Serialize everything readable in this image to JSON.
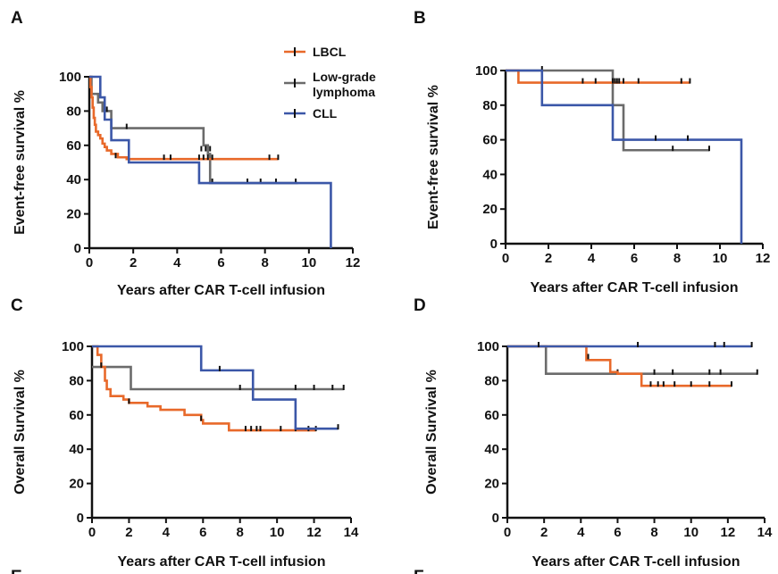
{
  "colors": {
    "LBCL": "#e8692a",
    "Low-grade lymphoma": "#6b6b6b",
    "CLL": "#3b57a8"
  },
  "legend": {
    "items": [
      {
        "name": "LBCL",
        "lines": [
          "LBCL"
        ]
      },
      {
        "name": "Low-grade lymphoma",
        "lines": [
          "Low-grade",
          "lymphoma"
        ]
      },
      {
        "name": "CLL",
        "lines": [
          "CLL"
        ]
      }
    ]
  },
  "footer_labels": [
    "E",
    "F"
  ],
  "chart_data": [
    {
      "panel": "A",
      "type": "line",
      "title": "",
      "xlabel": "Years after CAR T-cell infusion",
      "ylabel": "Event-free survival %",
      "xlim": [
        0,
        12
      ],
      "ylim": [
        0,
        100
      ],
      "xticks": [
        "0",
        "2",
        "4",
        "6",
        "8",
        "10",
        "12"
      ],
      "yticks": [
        "0",
        "20",
        "40",
        "60",
        "80",
        "100"
      ],
      "series": [
        {
          "name": "LBCL",
          "steps": [
            [
              0,
              100
            ],
            [
              0.05,
              94
            ],
            [
              0.1,
              88
            ],
            [
              0.15,
              82
            ],
            [
              0.2,
              76
            ],
            [
              0.25,
              72
            ],
            [
              0.3,
              68
            ],
            [
              0.4,
              66
            ],
            [
              0.5,
              64
            ],
            [
              0.6,
              61
            ],
            [
              0.7,
              59
            ],
            [
              0.8,
              57
            ],
            [
              1.0,
              55
            ],
            [
              1.3,
              53
            ],
            [
              1.7,
              52
            ],
            [
              8.6,
              52
            ]
          ],
          "censored": [
            [
              1.2,
              53
            ],
            [
              3.4,
              52
            ],
            [
              3.7,
              52
            ],
            [
              5.0,
              52
            ],
            [
              5.2,
              52
            ],
            [
              5.4,
              52
            ],
            [
              5.6,
              52
            ],
            [
              8.2,
              52
            ],
            [
              8.6,
              52
            ]
          ]
        },
        {
          "name": "Low-grade lymphoma",
          "steps": [
            [
              0,
              100
            ],
            [
              0.1,
              90
            ],
            [
              0.4,
              85
            ],
            [
              0.6,
              80
            ],
            [
              1.0,
              70
            ],
            [
              5.0,
              70
            ],
            [
              5.2,
              60
            ],
            [
              5.4,
              55
            ],
            [
              5.5,
              38
            ],
            [
              9.5,
              38
            ]
          ],
          "censored": [
            [
              0.8,
              80
            ],
            [
              1.7,
              70
            ],
            [
              5.1,
              57
            ],
            [
              5.3,
              57
            ],
            [
              5.5,
              57
            ],
            [
              5.6,
              38
            ],
            [
              7.2,
              38
            ],
            [
              7.8,
              38
            ],
            [
              8.5,
              38
            ],
            [
              9.4,
              38
            ]
          ]
        },
        {
          "name": "CLL",
          "steps": [
            [
              0,
              100
            ],
            [
              0.5,
              88
            ],
            [
              0.7,
              75
            ],
            [
              1.0,
              63
            ],
            [
              1.7,
              63
            ],
            [
              1.8,
              50
            ],
            [
              5.0,
              50
            ],
            [
              5.0,
              38
            ],
            [
              11.0,
              38
            ],
            [
              11.0,
              0
            ]
          ],
          "censored": []
        }
      ]
    },
    {
      "panel": "B",
      "type": "line",
      "title": "",
      "xlabel": "Years after CAR T-cell infusion",
      "ylabel": "Event-free survival %",
      "xlim": [
        0,
        12
      ],
      "ylim": [
        0,
        100
      ],
      "xticks": [
        "0",
        "2",
        "4",
        "6",
        "8",
        "10",
        "12"
      ],
      "yticks": [
        "0",
        "20",
        "40",
        "60",
        "80",
        "100"
      ],
      "series": [
        {
          "name": "LBCL",
          "steps": [
            [
              0,
              100
            ],
            [
              0.6,
              93
            ],
            [
              8.6,
              93
            ]
          ],
          "censored": [
            [
              3.6,
              93
            ],
            [
              4.2,
              93
            ],
            [
              5.0,
              93
            ],
            [
              5.1,
              93
            ],
            [
              5.2,
              93
            ],
            [
              5.3,
              93
            ],
            [
              5.5,
              93
            ],
            [
              6.2,
              93
            ],
            [
              8.2,
              93
            ],
            [
              8.6,
              93
            ]
          ]
        },
        {
          "name": "Low-grade lymphoma",
          "steps": [
            [
              0,
              100
            ],
            [
              5.0,
              100
            ],
            [
              5.0,
              80
            ],
            [
              5.5,
              80
            ],
            [
              5.5,
              54
            ],
            [
              9.5,
              54
            ]
          ],
          "censored": [
            [
              1.7,
              100
            ],
            [
              7.8,
              54
            ],
            [
              9.5,
              54
            ]
          ]
        },
        {
          "name": "CLL",
          "steps": [
            [
              0,
              100
            ],
            [
              1.7,
              100
            ],
            [
              1.7,
              80
            ],
            [
              5.0,
              80
            ],
            [
              5.0,
              60
            ],
            [
              11.0,
              60
            ],
            [
              11.0,
              0
            ]
          ],
          "censored": [
            [
              7.0,
              60
            ],
            [
              8.5,
              60
            ]
          ]
        }
      ]
    },
    {
      "panel": "C",
      "type": "line",
      "title": "",
      "xlabel": "Years after CAR T-cell infusion",
      "ylabel": "Overall Survival %",
      "xlim": [
        0,
        14
      ],
      "ylim": [
        0,
        100
      ],
      "xticks": [
        "0",
        "2",
        "4",
        "6",
        "8",
        "10",
        "12",
        "14"
      ],
      "yticks": [
        "0",
        "20",
        "40",
        "60",
        "80",
        "100"
      ],
      "series": [
        {
          "name": "LBCL",
          "steps": [
            [
              0,
              100
            ],
            [
              0.3,
              95
            ],
            [
              0.5,
              88
            ],
            [
              0.7,
              80
            ],
            [
              0.8,
              75
            ],
            [
              1.0,
              71
            ],
            [
              1.7,
              69
            ],
            [
              2.0,
              67
            ],
            [
              3.0,
              65
            ],
            [
              3.7,
              63
            ],
            [
              5.0,
              60
            ],
            [
              5.9,
              57
            ],
            [
              6.0,
              55
            ],
            [
              7.4,
              53
            ],
            [
              7.4,
              51
            ],
            [
              12.1,
              51
            ]
          ],
          "censored": [
            [
              0.5,
              88
            ],
            [
              2.0,
              67
            ],
            [
              5.9,
              57
            ],
            [
              8.3,
              51
            ],
            [
              8.6,
              51
            ],
            [
              8.9,
              51
            ],
            [
              9.1,
              51
            ],
            [
              10.2,
              51
            ],
            [
              11.0,
              51
            ],
            [
              11.7,
              51
            ],
            [
              12.1,
              51
            ]
          ]
        },
        {
          "name": "Low-grade lymphoma",
          "steps": [
            [
              0,
              88
            ],
            [
              2.1,
              88
            ],
            [
              2.1,
              75
            ],
            [
              13.6,
              75
            ]
          ],
          "censored": [
            [
              8.0,
              75
            ],
            [
              11.0,
              75
            ],
            [
              12.0,
              75
            ],
            [
              13.0,
              75
            ],
            [
              13.6,
              75
            ]
          ]
        },
        {
          "name": "CLL",
          "steps": [
            [
              0,
              100
            ],
            [
              5.9,
              100
            ],
            [
              5.9,
              86
            ],
            [
              8.7,
              86
            ],
            [
              8.7,
              69
            ],
            [
              11.0,
              69
            ],
            [
              11.0,
              52
            ],
            [
              13.3,
              52
            ]
          ],
          "censored": [
            [
              6.9,
              86
            ],
            [
              13.3,
              52
            ]
          ]
        }
      ]
    },
    {
      "panel": "D",
      "type": "line",
      "title": "",
      "xlabel": "Years after CAR T-cell infusion",
      "ylabel": "Overall Survival %",
      "xlim": [
        0,
        14
      ],
      "ylim": [
        0,
        100
      ],
      "xticks": [
        "0",
        "2",
        "4",
        "6",
        "8",
        "10",
        "12",
        "14"
      ],
      "yticks": [
        "0",
        "20",
        "40",
        "60",
        "80",
        "100"
      ],
      "series": [
        {
          "name": "LBCL",
          "steps": [
            [
              0,
              100
            ],
            [
              4.3,
              100
            ],
            [
              4.3,
              92
            ],
            [
              5.6,
              92
            ],
            [
              5.6,
              85
            ],
            [
              6.0,
              85
            ],
            [
              6.0,
              84
            ],
            [
              7.3,
              84
            ],
            [
              7.3,
              77
            ],
            [
              12.2,
              77
            ]
          ],
          "censored": [
            [
              4.4,
              93
            ],
            [
              7.8,
              77
            ],
            [
              8.2,
              77
            ],
            [
              8.5,
              77
            ],
            [
              9.1,
              77
            ],
            [
              10.0,
              77
            ],
            [
              11.0,
              77
            ],
            [
              12.2,
              77
            ]
          ]
        },
        {
          "name": "Low-grade lymphoma",
          "steps": [
            [
              0,
              100
            ],
            [
              2.1,
              100
            ],
            [
              2.1,
              84
            ],
            [
              13.6,
              84
            ]
          ],
          "censored": [
            [
              6.0,
              84
            ],
            [
              8.0,
              84
            ],
            [
              9.0,
              84
            ],
            [
              11.0,
              84
            ],
            [
              11.6,
              84
            ],
            [
              13.6,
              84
            ]
          ]
        },
        {
          "name": "CLL",
          "steps": [
            [
              0,
              100
            ],
            [
              13.3,
              100
            ]
          ],
          "censored": [
            [
              1.7,
              100
            ],
            [
              7.1,
              100
            ],
            [
              11.3,
              100
            ],
            [
              11.8,
              100
            ],
            [
              13.3,
              100
            ]
          ]
        }
      ]
    }
  ]
}
